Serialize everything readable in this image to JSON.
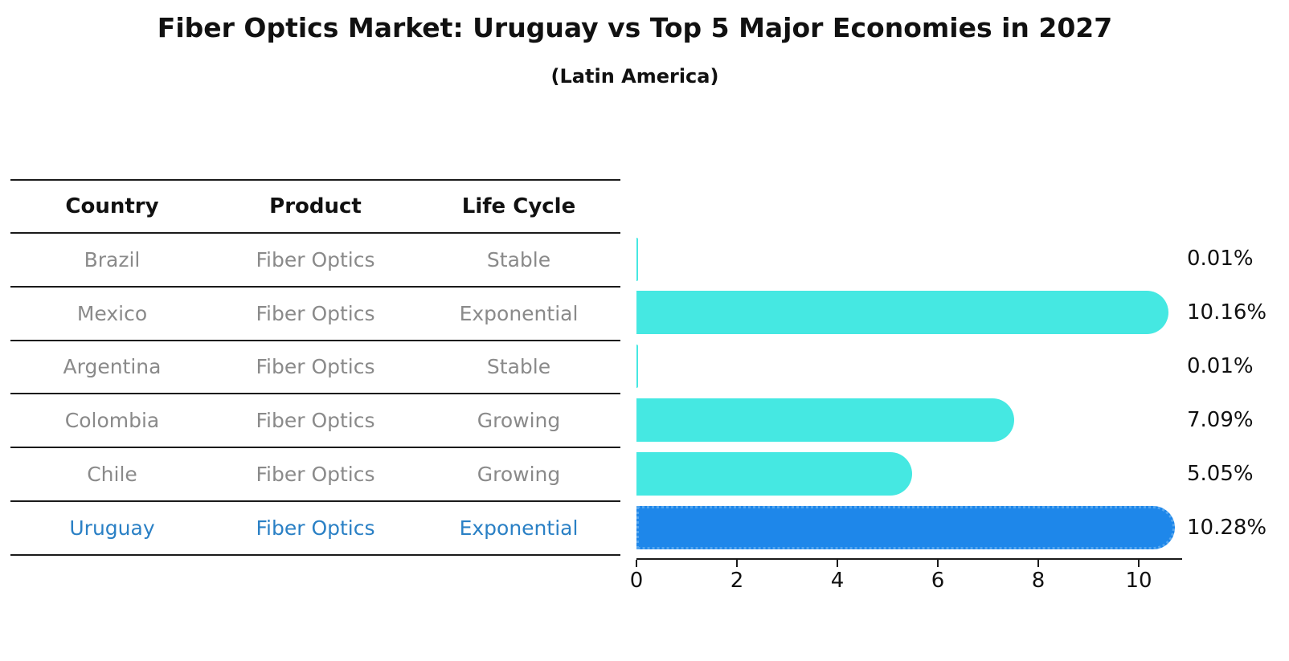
{
  "title": "Fiber Optics Market: Uruguay vs Top 5 Major Economies in 2027",
  "subtitle": "(Latin America)",
  "table": {
    "headers": [
      "Country",
      "Product",
      "Life Cycle"
    ],
    "rows": [
      {
        "country": "Brazil",
        "product": "Fiber Optics",
        "life_cycle": "Stable",
        "highlighted": false
      },
      {
        "country": "Mexico",
        "product": "Fiber Optics",
        "life_cycle": "Exponential",
        "highlighted": false
      },
      {
        "country": "Argentina",
        "product": "Fiber Optics",
        "life_cycle": "Stable",
        "highlighted": false
      },
      {
        "country": "Colombia",
        "product": "Fiber Optics",
        "life_cycle": "Growing",
        "highlighted": false
      },
      {
        "country": "Chile",
        "product": "Fiber Optics",
        "life_cycle": "Growing",
        "highlighted": false
      },
      {
        "country": "Uruguay",
        "product": "Fiber Optics",
        "life_cycle": "Exponential",
        "highlighted": true
      }
    ]
  },
  "chart_data": {
    "type": "bar",
    "orientation": "horizontal",
    "title": "Fiber Optics Market: Uruguay vs Top 5 Major Economies in 2027",
    "subtitle": "(Latin America)",
    "categories": [
      "Brazil",
      "Mexico",
      "Argentina",
      "Colombia",
      "Chile",
      "Uruguay"
    ],
    "values": [
      0.01,
      10.16,
      0.01,
      7.09,
      5.05,
      10.28
    ],
    "value_labels": [
      "0.01%",
      "10.16%",
      "0.01%",
      "7.09%",
      "5.05%",
      "10.28%"
    ],
    "x_ticks": [
      0,
      2,
      4,
      6,
      8,
      10
    ],
    "xlim": [
      0,
      10.85
    ],
    "grid": false,
    "legend": "none",
    "highlight_index": 5,
    "bar_color": "#45e8e2",
    "highlight_bar_color": "#1e87ea",
    "highlight_border_color": "#55a6ef",
    "highlight_text_color": "#2a80c5",
    "text_color": "#111111",
    "muted_text_color": "#8a8a8a"
  }
}
